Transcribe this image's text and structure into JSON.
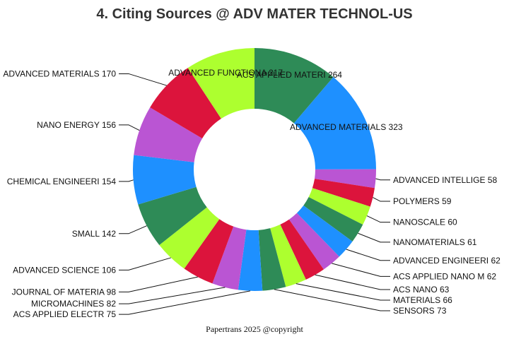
{
  "chart_data": {
    "type": "pie",
    "title": "4. Citing Sources @ ADV MATER TECHNOL-US",
    "footer": "Papertrans 2025 @copyright",
    "slices": [
      {
        "label": "ACS APPLIED MATERI",
        "value": 264,
        "color": "#2e8b57"
      },
      {
        "label": "ADVANCED MATERIALS",
        "value": 323,
        "color": "#1e90ff"
      },
      {
        "label": "ADVANCED INTELLIGE",
        "value": 58,
        "color": "#ba55d3"
      },
      {
        "label": "POLYMERS",
        "value": 59,
        "color": "#dc143c"
      },
      {
        "label": "NANOSCALE",
        "value": 60,
        "color": "#adff2f"
      },
      {
        "label": "NANOMATERIALS",
        "value": 61,
        "color": "#2e8b57"
      },
      {
        "label": "ADVANCED ENGINEERI",
        "value": 62,
        "color": "#1e90ff"
      },
      {
        "label": "ACS APPLIED NANO M",
        "value": 62,
        "color": "#ba55d3"
      },
      {
        "label": "ACS NANO",
        "value": 63,
        "color": "#dc143c"
      },
      {
        "label": "MATERIALS",
        "value": 66,
        "color": "#adff2f"
      },
      {
        "label": "SENSORS",
        "value": 73,
        "color": "#2e8b57"
      },
      {
        "label": "ACS APPLIED ELECTR",
        "value": 75,
        "color": "#1e90ff"
      },
      {
        "label": "MICROMACHINES",
        "value": 82,
        "color": "#ba55d3"
      },
      {
        "label": "JOURNAL OF MATERIA",
        "value": 98,
        "color": "#dc143c"
      },
      {
        "label": "ADVANCED SCIENCE",
        "value": 106,
        "color": "#adff2f"
      },
      {
        "label": "SMALL",
        "value": 142,
        "color": "#2e8b57"
      },
      {
        "label": "CHEMICAL ENGINEERI",
        "value": 154,
        "color": "#1e90ff"
      },
      {
        "label": "NANO ENERGY",
        "value": 156,
        "color": "#ba55d3"
      },
      {
        "label": "ADVANCED MATERIALS",
        "value": 170,
        "color": "#dc143c"
      },
      {
        "label": "ADVANCED FUNCTIONA",
        "value": 217,
        "color": "#adff2f"
      }
    ]
  }
}
